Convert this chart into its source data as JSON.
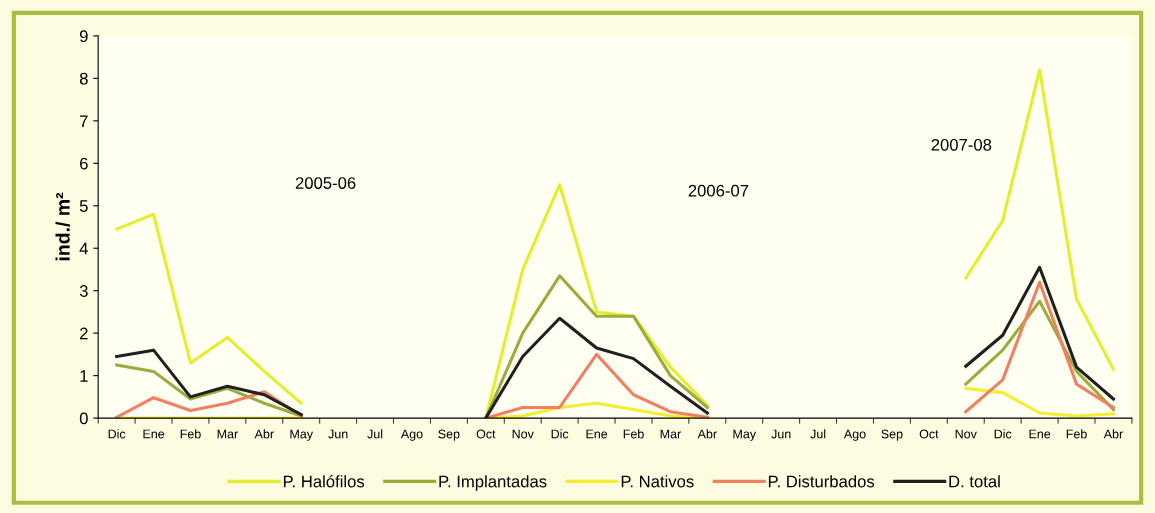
{
  "chart_data": {
    "type": "line",
    "ylabel": "ind./ m²",
    "categories": [
      "Dic",
      "Ene",
      "Feb",
      "Mar",
      "Abr",
      "May",
      "Jun",
      "Jul",
      "Ago",
      "Sep",
      "Oct",
      "Nov",
      "Dic",
      "Ene",
      "Feb",
      "Mar",
      "Abr",
      "May",
      "Jun",
      "Jul",
      "Ago",
      "Sep",
      "Oct",
      "Nov",
      "Dic",
      "Ene",
      "Feb",
      "Abr"
    ],
    "series": [
      {
        "name": "P. Halófilos",
        "color": "#e4ee2c",
        "values": [
          4.45,
          4.8,
          1.3,
          1.9,
          1.1,
          0.35,
          null,
          null,
          null,
          null,
          0,
          3.5,
          5.5,
          2.5,
          2.4,
          1.2,
          0.3,
          null,
          null,
          null,
          null,
          null,
          null,
          3.3,
          4.65,
          8.2,
          2.8,
          1.15
        ]
      },
      {
        "name": "P. Implantadas",
        "color": "#9aac3c",
        "values": [
          1.25,
          1.1,
          0.45,
          0.7,
          0.35,
          0.05,
          null,
          null,
          null,
          null,
          0,
          2.0,
          3.35,
          2.4,
          2.4,
          1.0,
          0.25,
          null,
          null,
          null,
          null,
          null,
          null,
          0.8,
          1.6,
          2.75,
          1.1,
          0.2
        ]
      },
      {
        "name": "P. Nativos",
        "color": "#f4ee30",
        "values": [
          0,
          0,
          0,
          0,
          0,
          0,
          null,
          null,
          null,
          null,
          0,
          0.05,
          0.25,
          0.35,
          0.2,
          0.05,
          0,
          null,
          null,
          null,
          null,
          null,
          null,
          0.7,
          0.6,
          0.12,
          0.05,
          0.1
        ]
      },
      {
        "name": "P. Disturbados",
        "color": "#f08060",
        "values": [
          0.02,
          0.48,
          0.18,
          0.35,
          0.62,
          0.05,
          null,
          null,
          null,
          null,
          0,
          0.25,
          0.25,
          1.5,
          0.55,
          0.15,
          0.02,
          null,
          null,
          null,
          null,
          null,
          null,
          0.15,
          0.9,
          3.2,
          0.8,
          0.25
        ]
      },
      {
        "name": "D. total",
        "color": "#202020",
        "values": [
          1.45,
          1.6,
          0.5,
          0.75,
          0.55,
          0.08,
          null,
          null,
          null,
          null,
          0,
          1.45,
          2.35,
          1.65,
          1.4,
          0.75,
          0.12,
          null,
          null,
          null,
          null,
          null,
          null,
          1.22,
          1.95,
          3.55,
          1.2,
          0.45
        ]
      }
    ],
    "ylim": [
      0,
      9
    ],
    "yticks": [
      0,
      1,
      2,
      3,
      4,
      5,
      6,
      7,
      8,
      9
    ],
    "annotations": [
      "2005-06",
      "2006-07",
      "2007-08"
    ],
    "grid": false,
    "legend": "bottom",
    "marker": "none",
    "line_style": "solid"
  }
}
